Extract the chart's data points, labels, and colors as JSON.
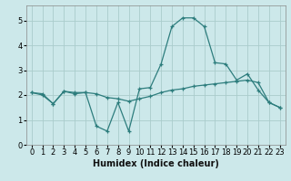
{
  "xlabel": "Humidex (Indice chaleur)",
  "background_color": "#cce8ea",
  "grid_color": "#aacccc",
  "line_color": "#2d7d7d",
  "x_values": [
    0,
    1,
    2,
    3,
    4,
    5,
    6,
    7,
    8,
    9,
    10,
    11,
    12,
    13,
    14,
    15,
    16,
    17,
    18,
    19,
    20,
    21,
    22,
    23
  ],
  "line1_y": [
    2.1,
    2.05,
    1.65,
    2.15,
    2.1,
    2.1,
    0.75,
    0.55,
    1.7,
    0.55,
    2.25,
    2.3,
    3.25,
    4.75,
    5.1,
    5.1,
    4.75,
    3.3,
    3.25,
    2.6,
    2.85,
    2.2,
    1.7,
    1.5
  ],
  "line2_y": [
    2.1,
    2.0,
    1.65,
    2.15,
    2.05,
    2.1,
    2.05,
    1.9,
    1.85,
    1.75,
    1.85,
    1.95,
    2.1,
    2.2,
    2.25,
    2.35,
    2.4,
    2.45,
    2.5,
    2.55,
    2.6,
    2.5,
    1.7,
    1.5
  ],
  "xlim": [
    -0.5,
    23.5
  ],
  "ylim": [
    0,
    5.6
  ],
  "yticks": [
    0,
    1,
    2,
    3,
    4,
    5
  ],
  "xtick_labels": [
    "0",
    "1",
    "2",
    "3",
    "4",
    "5",
    "6",
    "7",
    "8",
    "9",
    "10",
    "11",
    "12",
    "13",
    "14",
    "15",
    "16",
    "17",
    "18",
    "19",
    "20",
    "21",
    "22",
    "23"
  ]
}
